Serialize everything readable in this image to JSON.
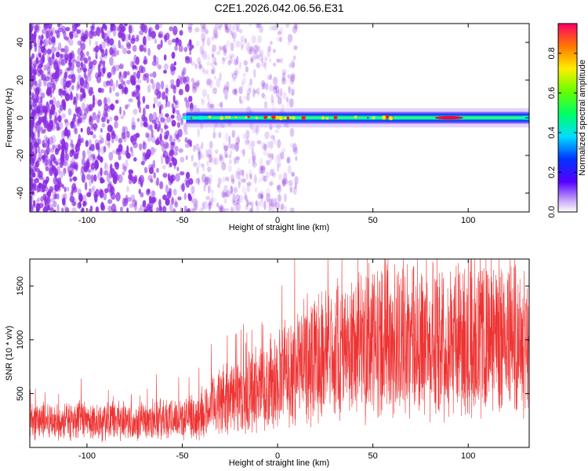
{
  "title": "C2E1.2026.042.06.56.E31",
  "colors": {
    "background": "#ffffff",
    "snr_line": "#ee3333",
    "scatter_purple": "#8a2be2"
  },
  "chart_data": [
    {
      "type": "heatmap",
      "xlabel": "Height of straight line (km)",
      "ylabel": "Frequency (Hz)",
      "xlim": [
        -130,
        132
      ],
      "ylim": [
        -50,
        50
      ],
      "xticks": [
        -100,
        -50,
        0,
        50,
        100
      ],
      "yticks": [
        -40,
        -20,
        0,
        20,
        40
      ],
      "colorbar": {
        "label": "Normalized spectral amplitude",
        "range": [
          0,
          0.95
        ],
        "ticks": [
          "0.0",
          "0.2",
          "0.4",
          "0.6",
          "0.8"
        ],
        "tick_values": [
          0,
          0.2,
          0.4,
          0.6,
          0.8
        ]
      },
      "signal_band": {
        "x_start": -48,
        "x_end": 132,
        "center_frequency": 0,
        "segments": [
          {
            "x": -48,
            "width_hz": 5,
            "amplitude": 0.45
          },
          {
            "x": -40,
            "width_hz": 4,
            "amplitude": 0.3
          },
          {
            "x": 0,
            "width_hz": 5,
            "amplitude": 0.55
          },
          {
            "x": 50,
            "width_hz": 6,
            "amplitude": 0.4
          },
          {
            "x": 90,
            "width_hz": 5,
            "amplitude": 0.95
          },
          {
            "x": 130,
            "width_hz": 7,
            "amplitude": 0.3
          }
        ]
      },
      "noise_region": {
        "x_start": -130,
        "x_end": -45,
        "amplitude": 0.1
      }
    },
    {
      "type": "line",
      "xlabel": "Height of straight line (km)",
      "ylabel": "SNR (10 * v/v)",
      "xlim": [
        -130,
        132
      ],
      "ylim": [
        0,
        1750
      ],
      "xticks": [
        -100,
        -50,
        0,
        50,
        100
      ],
      "yticks": [
        500,
        1000,
        1500
      ],
      "series": [
        {
          "x": [
            -130,
            -100,
            -70,
            -50,
            -40,
            -33,
            -25,
            -15,
            0,
            15,
            25,
            40,
            60,
            80,
            100,
            132
          ],
          "y": [
            250,
            240,
            260,
            270,
            290,
            420,
            450,
            500,
            650,
            800,
            900,
            950,
            1000,
            980,
            1020,
            1050
          ]
        }
      ]
    }
  ]
}
